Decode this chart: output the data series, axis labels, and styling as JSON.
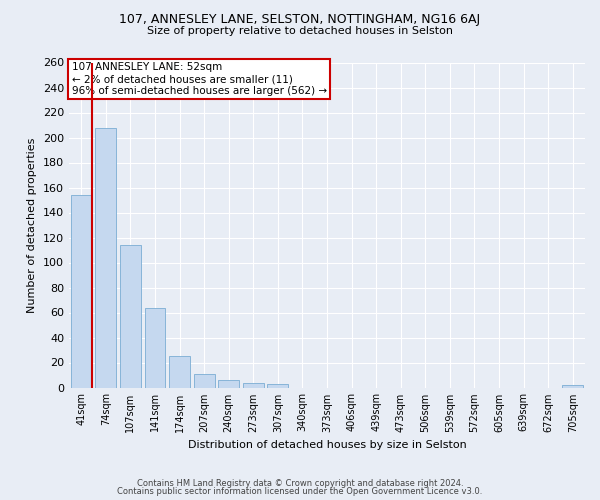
{
  "title1": "107, ANNESLEY LANE, SELSTON, NOTTINGHAM, NG16 6AJ",
  "title2": "Size of property relative to detached houses in Selston",
  "xlabel": "Distribution of detached houses by size in Selston",
  "ylabel": "Number of detached properties",
  "categories": [
    "41sqm",
    "74sqm",
    "107sqm",
    "141sqm",
    "174sqm",
    "207sqm",
    "240sqm",
    "273sqm",
    "307sqm",
    "340sqm",
    "373sqm",
    "406sqm",
    "439sqm",
    "473sqm",
    "506sqm",
    "539sqm",
    "572sqm",
    "605sqm",
    "639sqm",
    "672sqm",
    "705sqm"
  ],
  "values": [
    154,
    208,
    114,
    64,
    25,
    11,
    6,
    4,
    3,
    0,
    0,
    0,
    0,
    0,
    0,
    0,
    0,
    0,
    0,
    0,
    2
  ],
  "bar_color": "#c5d8ef",
  "bar_edge_color": "#7aadd4",
  "highlight_color": "#cc0000",
  "annotation_title": "107 ANNESLEY LANE: 52sqm",
  "annotation_line1": "← 2% of detached houses are smaller (11)",
  "annotation_line2": "96% of semi-detached houses are larger (562) →",
  "annotation_box_color": "#ffffff",
  "annotation_box_edge": "#cc0000",
  "ylim": [
    0,
    260
  ],
  "yticks": [
    0,
    20,
    40,
    60,
    80,
    100,
    120,
    140,
    160,
    180,
    200,
    220,
    240,
    260
  ],
  "footer1": "Contains HM Land Registry data © Crown copyright and database right 2024.",
  "footer2": "Contains public sector information licensed under the Open Government Licence v3.0.",
  "bg_color": "#e8edf5",
  "grid_color": "#ffffff",
  "bar_width": 0.85
}
